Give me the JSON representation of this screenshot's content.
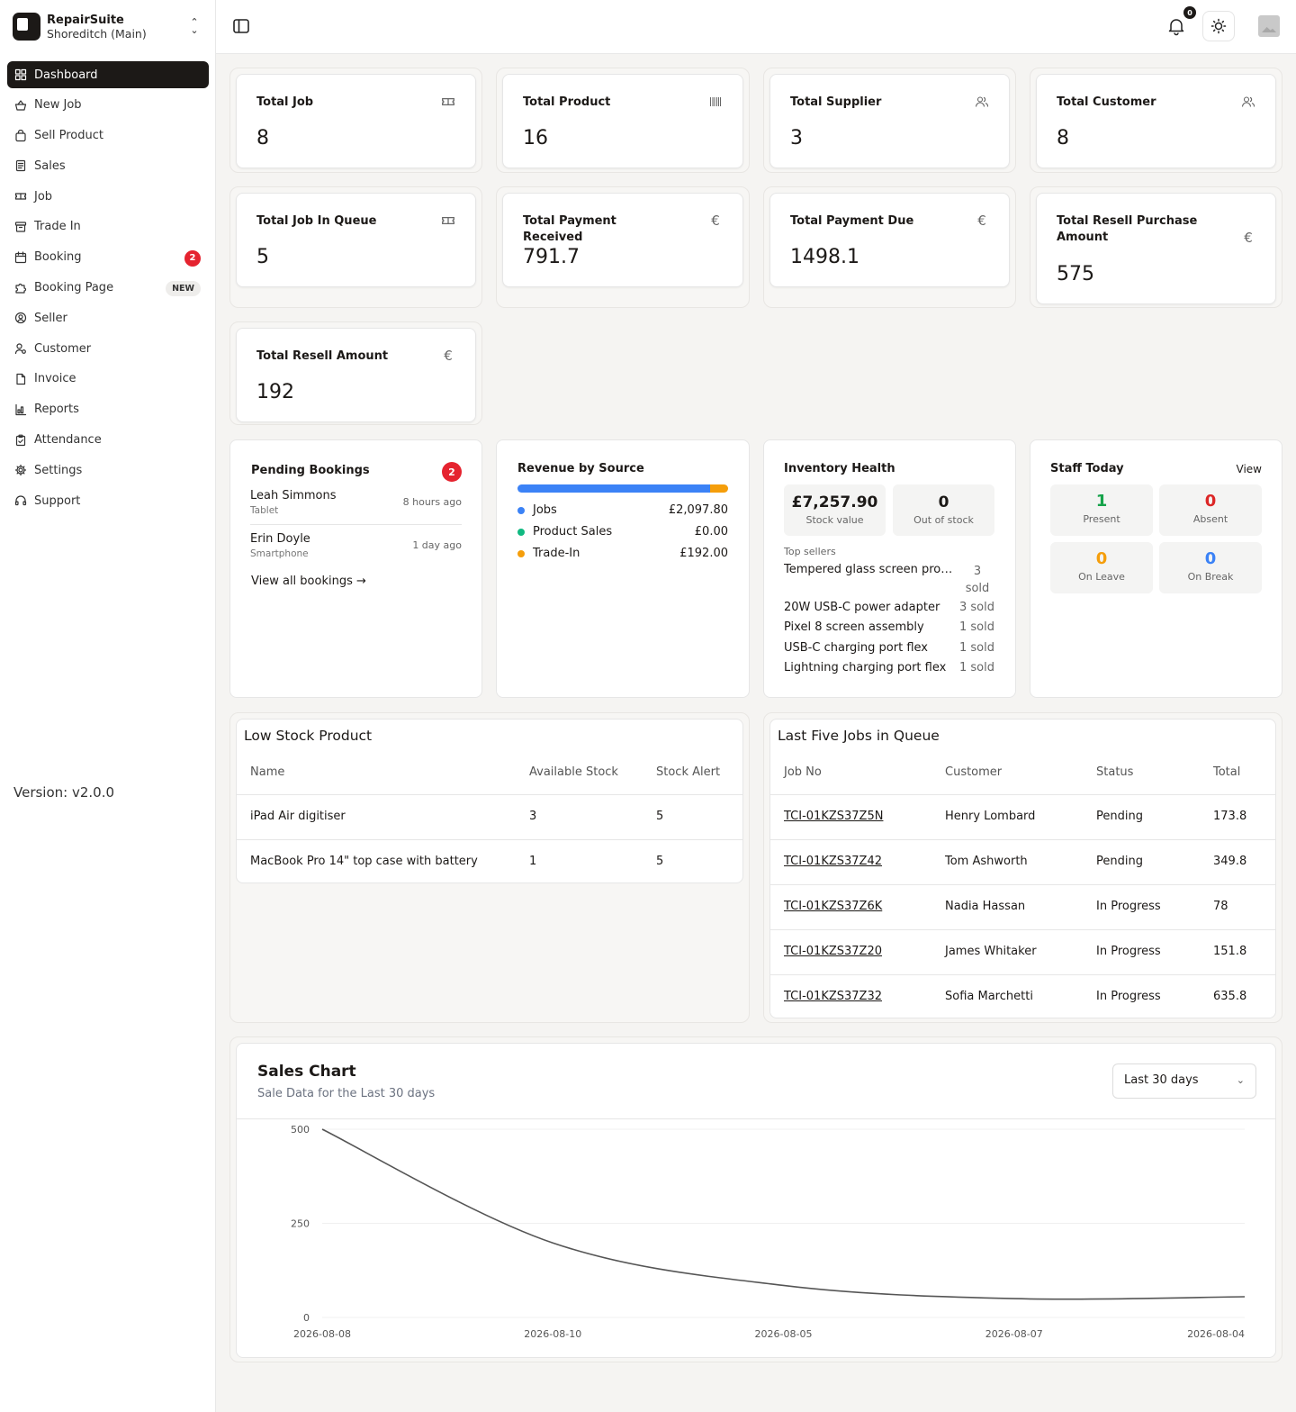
{
  "brand": {
    "name": "RepairSuite",
    "location": "Shoreditch (Main)"
  },
  "nav": [
    {
      "label": "Dashboard",
      "icon": "grid-icon",
      "active": true
    },
    {
      "label": "New Job",
      "icon": "basket-icon"
    },
    {
      "label": "Sell Product",
      "icon": "bag-icon"
    },
    {
      "label": "Sales",
      "icon": "receipt-icon"
    },
    {
      "label": "Job",
      "icon": "ticket-icon"
    },
    {
      "label": "Trade In",
      "icon": "archive-icon"
    },
    {
      "label": "Booking",
      "icon": "calendar-icon",
      "badge": "2"
    },
    {
      "label": "Booking Page",
      "icon": "puzzle-icon",
      "tag": "NEW"
    },
    {
      "label": "Seller",
      "icon": "user-circle-icon"
    },
    {
      "label": "Customer",
      "icon": "user-cog-icon"
    },
    {
      "label": "Invoice",
      "icon": "file-icon"
    },
    {
      "label": "Reports",
      "icon": "chart-icon"
    },
    {
      "label": "Attendance",
      "icon": "clipboard-icon"
    },
    {
      "label": "Settings",
      "icon": "gear-icon"
    },
    {
      "label": "Support",
      "icon": "headset-icon"
    }
  ],
  "version": "Version: v2.0.0",
  "topbar": {
    "notification_count": "0"
  },
  "stats": [
    {
      "title": "Total Job",
      "value": "8",
      "icon": "ticket-icon"
    },
    {
      "title": "Total Product",
      "value": "16",
      "icon": "barcode-icon"
    },
    {
      "title": "Total Supplier",
      "value": "3",
      "icon": "users-icon"
    },
    {
      "title": "Total Customer",
      "value": "8",
      "icon": "users-icon"
    },
    {
      "title": "Total Job In Queue",
      "value": "5",
      "icon": "ticket-icon"
    },
    {
      "title": "Total Payment Received",
      "value": "791.7",
      "icon": "euro-icon"
    },
    {
      "title": "Total Payment Due",
      "value": "1498.1",
      "icon": "euro-icon"
    },
    {
      "title": "Total Resell Purchase Amount",
      "value": "575",
      "icon": "euro-icon"
    },
    {
      "title": "Total Resell Amount",
      "value": "192",
      "icon": "euro-icon"
    }
  ],
  "pending_bookings": {
    "title": "Pending Bookings",
    "count": "2",
    "items": [
      {
        "name": "Leah Simmons",
        "type": "Tablet",
        "time": "8 hours ago"
      },
      {
        "name": "Erin Doyle",
        "type": "Smartphone",
        "time": "1 day ago"
      }
    ],
    "link": "View all bookings →"
  },
  "revenue": {
    "title": "Revenue by Source",
    "items": [
      {
        "label": "Jobs",
        "amount": "£2,097.80",
        "value": 2097.8,
        "color": "#3b82f6"
      },
      {
        "label": "Product Sales",
        "amount": "£0.00",
        "value": 0,
        "color": "#10b981"
      },
      {
        "label": "Trade-In",
        "amount": "£192.00",
        "value": 192,
        "color": "#f59e0b"
      }
    ]
  },
  "inventory": {
    "title": "Inventory Health",
    "stock_value": "£7,257.90",
    "stock_value_label": "Stock value",
    "out_of_stock": "0",
    "out_of_stock_label": "Out of stock",
    "top_label": "Top sellers",
    "top": [
      {
        "name": "Tempered glass screen pro…",
        "sold": "3 sold"
      },
      {
        "name": "20W USB-C power adapter",
        "sold": "3 sold"
      },
      {
        "name": "Pixel 8 screen assembly",
        "sold": "1 sold"
      },
      {
        "name": "USB-C charging port flex",
        "sold": "1 sold"
      },
      {
        "name": "Lightning charging port flex",
        "sold": "1 sold"
      }
    ]
  },
  "staff": {
    "title": "Staff Today",
    "view": "View",
    "items": [
      {
        "value": "1",
        "label": "Present",
        "color": "#16a34a"
      },
      {
        "value": "0",
        "label": "Absent",
        "color": "#dc2626"
      },
      {
        "value": "0",
        "label": "On Leave",
        "color": "#f59e0b"
      },
      {
        "value": "0",
        "label": "On Break",
        "color": "#3b82f6"
      }
    ]
  },
  "low_stock": {
    "title": "Low Stock Product",
    "headers": [
      "Name",
      "Available Stock",
      "Stock Alert"
    ],
    "rows": [
      [
        "iPad Air digitiser",
        "3",
        "5"
      ],
      [
        "MacBook Pro 14\" top case with battery",
        "1",
        "5"
      ]
    ]
  },
  "last_jobs": {
    "title": "Last Five Jobs in Queue",
    "headers": [
      "Job No",
      "Customer",
      "Status",
      "Total"
    ],
    "rows": [
      [
        "TCI-01KZS37Z5N",
        "Henry Lombard",
        "Pending",
        "173.8"
      ],
      [
        "TCI-01KZS37Z42",
        "Tom Ashworth",
        "Pending",
        "349.8"
      ],
      [
        "TCI-01KZS37Z6K",
        "Nadia Hassan",
        "In Progress",
        "78"
      ],
      [
        "TCI-01KZS37Z20",
        "James Whitaker",
        "In Progress",
        "151.8"
      ],
      [
        "TCI-01KZS37Z32",
        "Sofia Marchetti",
        "In Progress",
        "635.8"
      ]
    ]
  },
  "sales_chart": {
    "title": "Sales Chart",
    "subtitle": "Sale Data for the Last 30 days",
    "range_label": "Last 30 days"
  },
  "chart_data": {
    "type": "line",
    "title": "Sales Chart",
    "x": [
      "2026-08-08",
      "2026-08-10",
      "2026-08-05",
      "2026-08-07",
      "2026-08-04"
    ],
    "series": [
      {
        "values": [
          500,
          198,
          85,
          50,
          55
        ]
      }
    ],
    "ylim": [
      0,
      500
    ],
    "yticks": [
      0,
      250,
      500
    ],
    "grid": true,
    "color": "#555555"
  }
}
